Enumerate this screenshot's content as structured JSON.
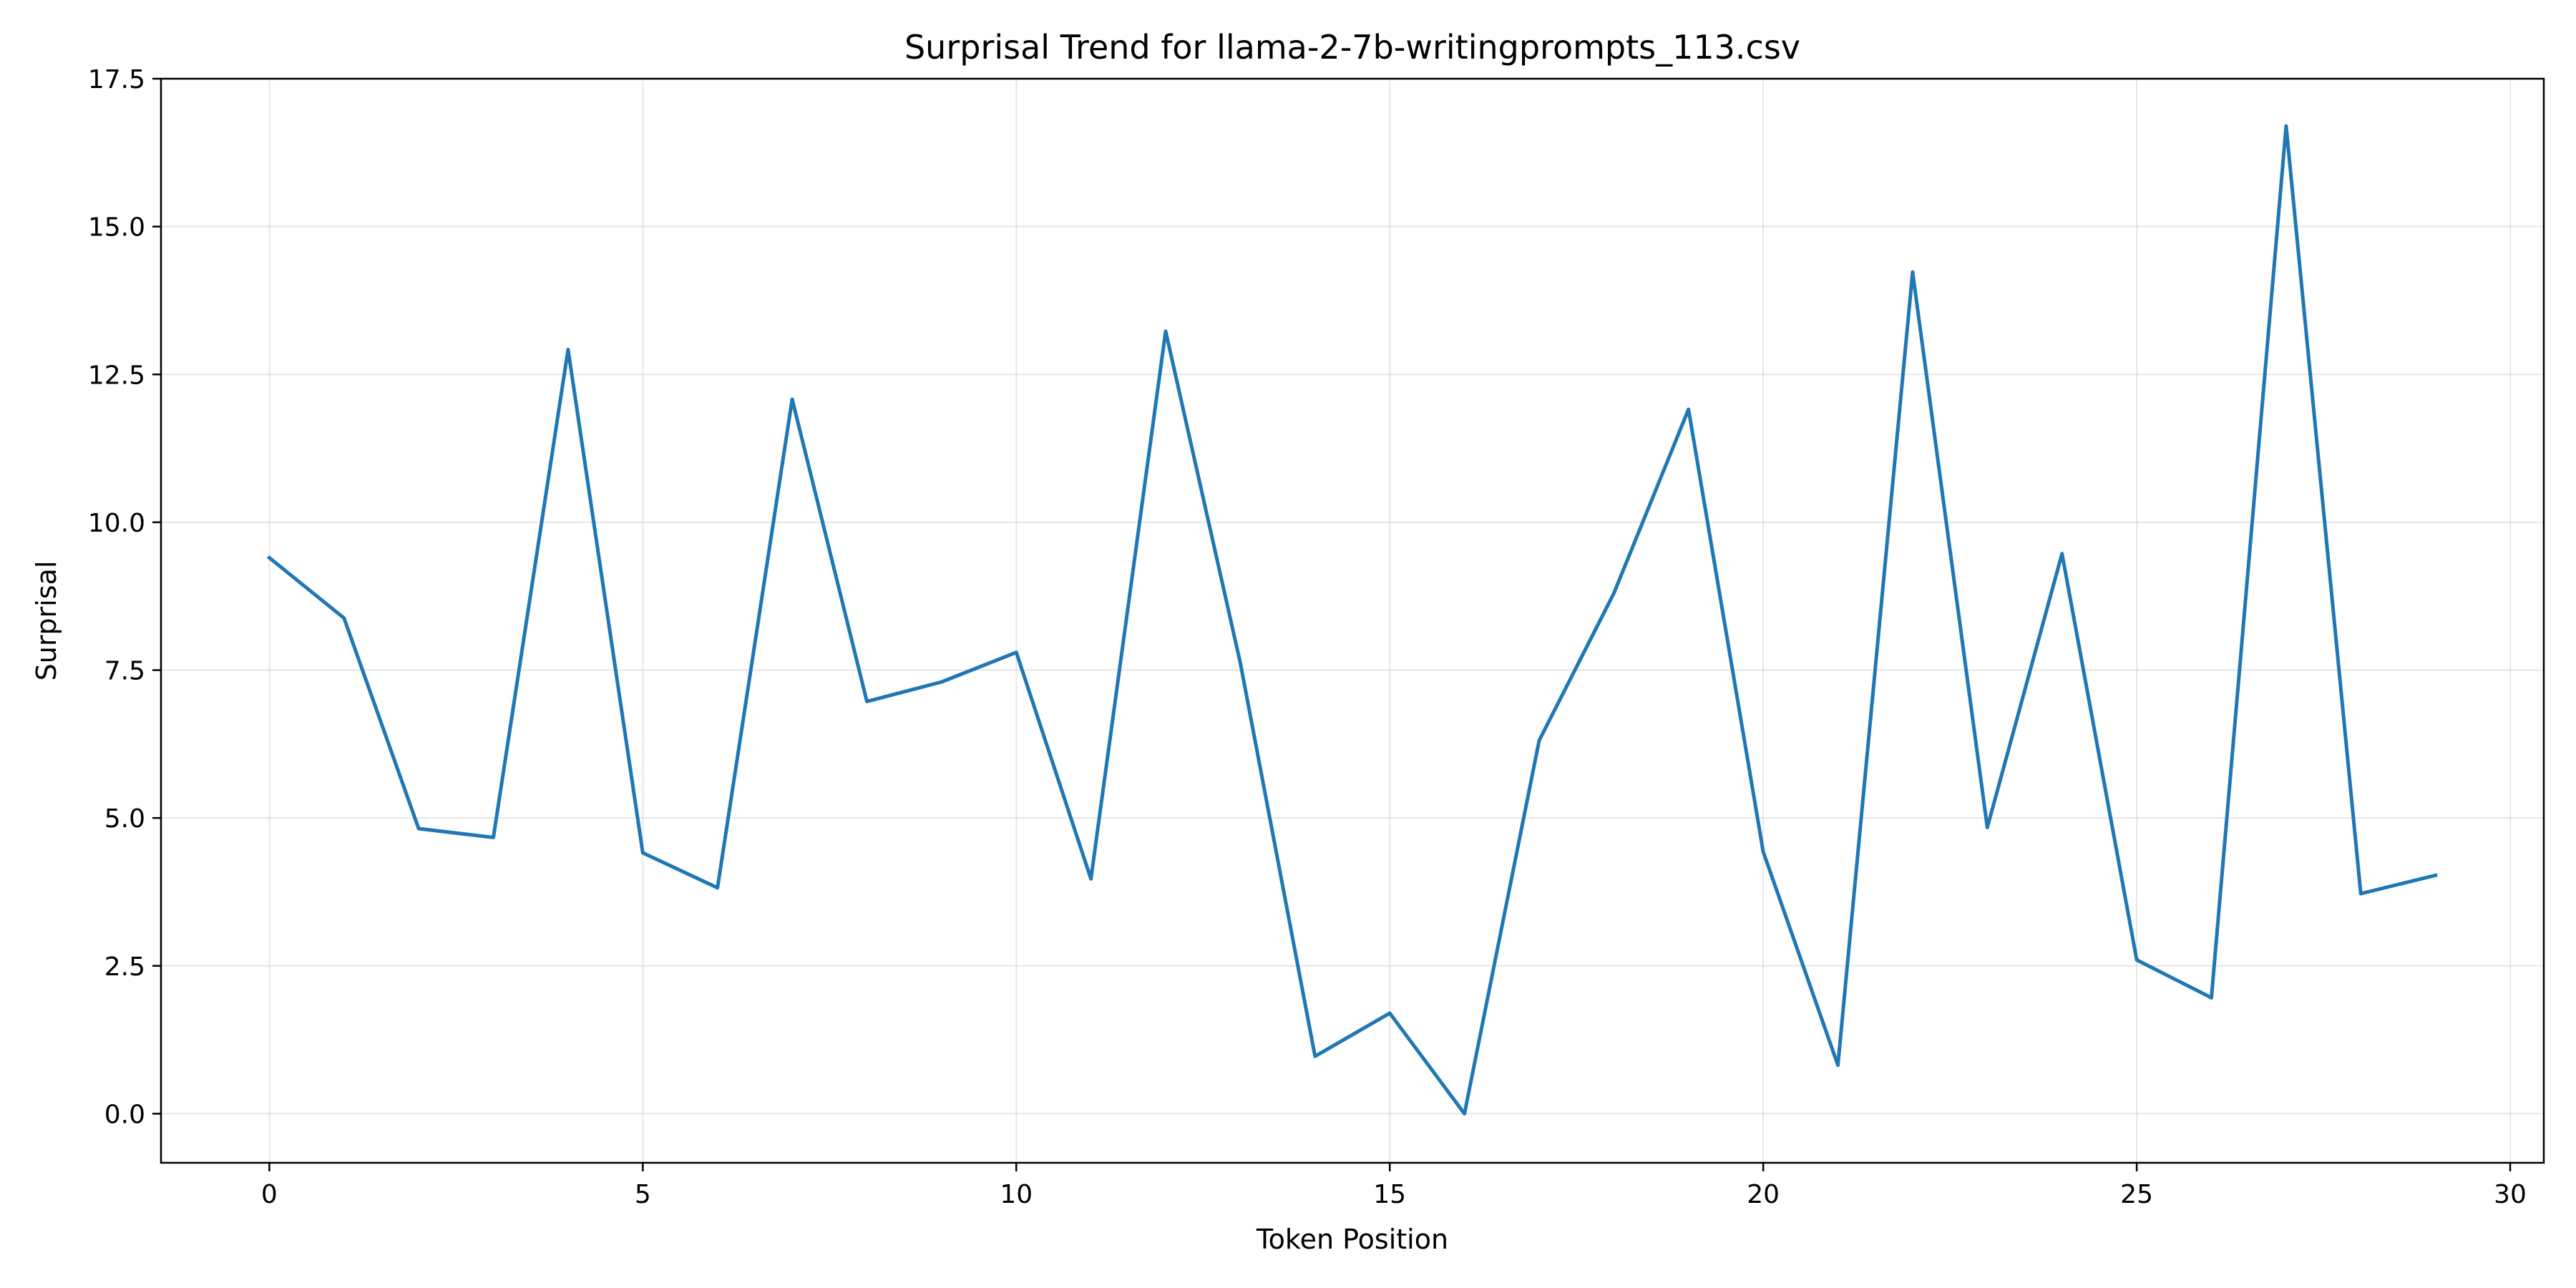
{
  "chart_data": {
    "type": "line",
    "title": "Surprisal Trend for llama-2-7b-writingprompts_113.csv",
    "xlabel": "Token Position",
    "ylabel": "Surprisal",
    "xlim": [
      -1.45,
      30.45
    ],
    "ylim": [
      -0.83,
      17.5
    ],
    "xticks": [
      0,
      5,
      10,
      15,
      20,
      25,
      30
    ],
    "xtick_labels": [
      "0",
      "5",
      "10",
      "15",
      "20",
      "25",
      "30"
    ],
    "yticks": [
      0,
      2.5,
      5,
      7.5,
      10,
      12.5,
      15,
      17.5
    ],
    "ytick_labels": [
      "0.0",
      "2.5",
      "5.0",
      "7.5",
      "10.0",
      "12.5",
      "15.0",
      "17.5"
    ],
    "grid": true,
    "legend": "none",
    "line_color": "#1f77b4",
    "series": [
      {
        "x": [
          0,
          1,
          2,
          3,
          4,
          5,
          6,
          7,
          8,
          9,
          10,
          11,
          12,
          13,
          14,
          15,
          16,
          17,
          18,
          19,
          20,
          21,
          22,
          23,
          24,
          25,
          26,
          27,
          28,
          29
        ],
        "values": [
          9.4,
          8.38,
          4.82,
          4.67,
          12.92,
          4.41,
          3.82,
          12.08,
          6.97,
          7.3,
          7.8,
          3.97,
          13.23,
          7.62,
          0.97,
          1.7,
          0.0,
          6.31,
          8.8,
          11.91,
          4.43,
          0.82,
          14.23,
          4.84,
          9.47,
          2.6,
          1.96,
          16.7,
          3.72,
          4.03
        ]
      }
    ]
  }
}
